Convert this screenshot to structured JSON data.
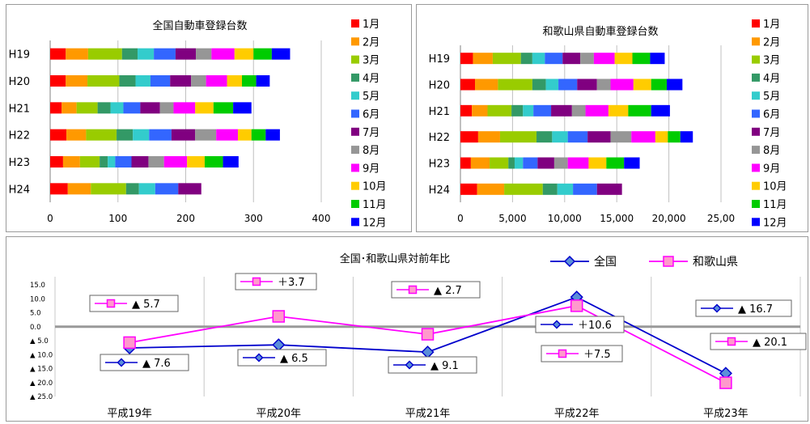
{
  "chart_data": [
    {
      "type": "bar",
      "orientation": "horizontal",
      "stacked": true,
      "title": "全国自動車登録台数",
      "categories": [
        "H19",
        "H20",
        "H21",
        "H22",
        "H23",
        "H24"
      ],
      "xlim": [
        0,
        400
      ],
      "xticks": [
        "0",
        "100",
        "200",
        "300",
        "400"
      ],
      "grid": "vertical",
      "legend_position": "right",
      "series": [
        {
          "name": "1月",
          "color": "#ff0000",
          "values": [
            23,
            23,
            17,
            24,
            19,
            26
          ]
        },
        {
          "name": "2月",
          "color": "#ff9900",
          "values": [
            33,
            32,
            22,
            29,
            25,
            34
          ]
        },
        {
          "name": "3月",
          "color": "#99cc00",
          "values": [
            50,
            47,
            31,
            45,
            29,
            52
          ]
        },
        {
          "name": "4月",
          "color": "#339966",
          "values": [
            23,
            24,
            19,
            24,
            12,
            19
          ]
        },
        {
          "name": "5月",
          "color": "#33cccc",
          "values": [
            24,
            22,
            19,
            24,
            11,
            24
          ]
        },
        {
          "name": "6月",
          "color": "#3366ff",
          "values": [
            32,
            29,
            25,
            33,
            24,
            34
          ]
        },
        {
          "name": "7月",
          "color": "#800080",
          "values": [
            30,
            31,
            29,
            35,
            25,
            34
          ]
        },
        {
          "name": "8月",
          "color": "#969696",
          "values": [
            23,
            22,
            20,
            31,
            23,
            0
          ]
        },
        {
          "name": "9月",
          "color": "#ff00ff",
          "values": [
            34,
            31,
            32,
            32,
            34,
            0
          ]
        },
        {
          "name": "10月",
          "color": "#ffcc00",
          "values": [
            28,
            22,
            27,
            20,
            26,
            0
          ]
        },
        {
          "name": "11月",
          "color": "#00cc00",
          "values": [
            27,
            21,
            29,
            21,
            27,
            0
          ]
        },
        {
          "name": "12月",
          "color": "#0000ff",
          "values": [
            27,
            20,
            27,
            21,
            23,
            0
          ]
        }
      ]
    },
    {
      "type": "bar",
      "orientation": "horizontal",
      "stacked": true,
      "title": "和歌山県自動車登録台数",
      "categories": [
        "H19",
        "H20",
        "H21",
        "H22",
        "H23",
        "H24"
      ],
      "xlim": [
        0,
        25000
      ],
      "xticks": [
        "0",
        "5,000",
        "10,000",
        "15,000",
        "20,000",
        "25,00"
      ],
      "grid": "vertical",
      "legend_position": "right",
      "series": [
        {
          "name": "1月",
          "color": "#ff0000",
          "values": [
            1200,
            1400,
            1100,
            1700,
            1000,
            1600
          ]
        },
        {
          "name": "2月",
          "color": "#ff9900",
          "values": [
            1900,
            2200,
            1500,
            2100,
            1800,
            2600
          ]
        },
        {
          "name": "3月",
          "color": "#99cc00",
          "values": [
            2700,
            3300,
            2300,
            3500,
            1800,
            3700
          ]
        },
        {
          "name": "4月",
          "color": "#339966",
          "values": [
            1100,
            1300,
            1100,
            1500,
            600,
            1400
          ]
        },
        {
          "name": "5月",
          "color": "#33cccc",
          "values": [
            1200,
            1200,
            1000,
            1500,
            800,
            1500
          ]
        },
        {
          "name": "6月",
          "color": "#3366ff",
          "values": [
            1700,
            1800,
            1700,
            1900,
            1400,
            2300
          ]
        },
        {
          "name": "7月",
          "color": "#800080",
          "values": [
            1700,
            1900,
            2000,
            2200,
            1600,
            2400
          ]
        },
        {
          "name": "8月",
          "color": "#969696",
          "values": [
            1300,
            1300,
            1300,
            2000,
            1300,
            0
          ]
        },
        {
          "name": "9月",
          "color": "#ff00ff",
          "values": [
            2000,
            2200,
            2200,
            2300,
            2000,
            0
          ]
        },
        {
          "name": "10月",
          "color": "#ffcc00",
          "values": [
            1700,
            1700,
            1900,
            1200,
            1700,
            0
          ]
        },
        {
          "name": "11月",
          "color": "#00cc00",
          "values": [
            1700,
            1500,
            2200,
            1200,
            1700,
            0
          ]
        },
        {
          "name": "12月",
          "color": "#0000ff",
          "values": [
            1400,
            1500,
            1800,
            1200,
            1500,
            0
          ]
        }
      ]
    },
    {
      "type": "line",
      "title": "全国･和歌山県対前年比",
      "categories": [
        "平成19年",
        "平成20年",
        "平成21年",
        "平成22年",
        "平成23年"
      ],
      "ylim": [
        -25,
        15
      ],
      "yticks": [
        {
          "value": 15,
          "label": "15.0"
        },
        {
          "value": 10,
          "label": "10.0"
        },
        {
          "value": 5,
          "label": "5.0"
        },
        {
          "value": 0,
          "label": "0.0"
        },
        {
          "value": -5,
          "label": "▲ 5.0"
        },
        {
          "value": -10,
          "label": "▲ 10.0"
        },
        {
          "value": -15,
          "label": "▲ 15.0"
        },
        {
          "value": -20,
          "label": "▲ 20.0"
        },
        {
          "value": -25,
          "label": "▲ 25.0"
        }
      ],
      "grid": "vertical",
      "legend_position": "top-right",
      "series": [
        {
          "name": "全国",
          "color": "#0000cc",
          "marker": "diamond",
          "values": [
            -7.6,
            -6.5,
            -9.1,
            10.6,
            -16.7
          ],
          "labels": [
            "▲ 7.6",
            "▲ 6.5",
            "▲ 9.1",
            "＋10.6",
            "▲ 16.7"
          ]
        },
        {
          "name": "和歌山県",
          "color": "#ff00ff",
          "marker": "square",
          "values": [
            -5.7,
            3.7,
            -2.7,
            7.5,
            -20.1
          ],
          "labels": [
            "▲ 5.7",
            "＋3.7",
            "▲ 2.7",
            "＋7.5",
            "▲ 20.1"
          ]
        }
      ]
    }
  ]
}
